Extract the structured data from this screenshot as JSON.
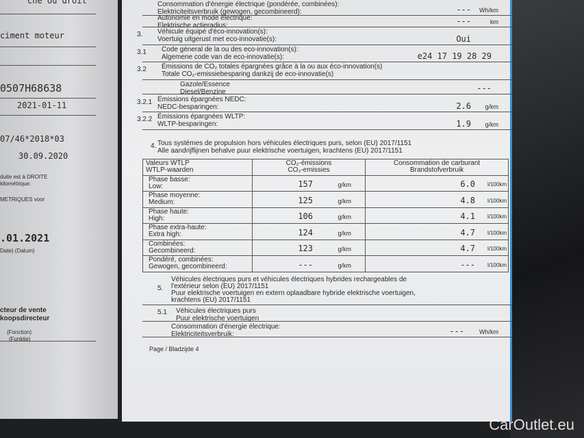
{
  "left_page": {
    "lines": [
      "che ou droit",
      "ciment moteur",
      "0507H68638",
      "2021-01-11",
      "07/46*2018*03",
      "30.09.2020",
      "duite est à DROITE",
      "kilométrique.",
      "METRIQUES voor",
      ".01.2021",
      "Date) (Datum)",
      "cteur de vente",
      "koopsdirecteur",
      "(Fonction)",
      "(Funktie)"
    ]
  },
  "rows": [
    {
      "num": "",
      "fr": "Consommation d'énergie électrique (pondérée, combinées):",
      "nl": "Elektriciteitsverbruik (gewogen, gecombineerd):",
      "value": "---",
      "unit": "Wh/km"
    },
    {
      "num": "",
      "fr": "Autonomie en mode électrique:",
      "nl": "Elektrische actieradius:",
      "value": "---",
      "unit": "km"
    },
    {
      "num": "3.",
      "fr": "Véhicule équipé d'éco-innovation(s):",
      "nl": "Voertuig uitgerust met eco-innovatie(s):",
      "value": "Oui",
      "unit": ""
    },
    {
      "num": "3.1",
      "fr": "Code géneral de la ou des eco-innovation(s):",
      "nl": "Algemene code van de eco-innovatie(s):",
      "value": "e24 17 19 28 29",
      "unit": ""
    },
    {
      "num": "3.2",
      "fr": "Émissions de CO₂ totales épargnées grâce à la ou aux éco-innovation(s)",
      "nl": "Totale CO₂-emissiebesparing dankzij de eco-innovatie(s)",
      "value": "",
      "unit": ""
    },
    {
      "num": "",
      "fr": "Gazole/Essence",
      "nl": "Diesel/Benzine",
      "value": "---",
      "unit": ""
    },
    {
      "num": "3.2.1",
      "fr": "Émissions épargnées NEDC:",
      "nl": "NEDC-besparingen:",
      "value": "2.6",
      "unit": "g/km"
    },
    {
      "num": "3.2.2",
      "fr": "Émissions épargnées WLTP:",
      "nl": "WLTP-besparingen:",
      "value": "1.9",
      "unit": "g/km"
    }
  ],
  "section4": {
    "num": "4.",
    "fr": "Tous systèmes de propulsion hors véhicules électriques purs, selon (EU) 2017/1151",
    "nl": "Alle aandrijflijnen behalve puur elektrische voertuigen, krachtens (EU) 2017/1151"
  },
  "table": {
    "headers": [
      [
        "Valeurs WTLP",
        "WTLP-waarden"
      ],
      [
        "CO₂-émissions",
        "CO₂-emissies"
      ],
      [
        "Consommation de carburant",
        "Brandstofverbruik"
      ]
    ],
    "rows": [
      {
        "fr": "Phase basse:",
        "nl": "Low:",
        "co2": "157",
        "co2_unit": "g/km",
        "fuel": "6.0",
        "fuel_unit": "l/100km"
      },
      {
        "fr": "Phase moyenne:",
        "nl": "Medium:",
        "co2": "125",
        "co2_unit": "g/km",
        "fuel": "4.8",
        "fuel_unit": "l/100km"
      },
      {
        "fr": "Phase haute:",
        "nl": "High:",
        "co2": "106",
        "co2_unit": "g/km",
        "fuel": "4.1",
        "fuel_unit": "l/100km"
      },
      {
        "fr": "Phase extra-haute:",
        "nl": "Extra high:",
        "co2": "124",
        "co2_unit": "g/km",
        "fuel": "4.7",
        "fuel_unit": "l/100km"
      },
      {
        "fr": "Combinées:",
        "nl": "Gecombineerd:",
        "co2": "123",
        "co2_unit": "g/km",
        "fuel": "4.7",
        "fuel_unit": "l/100km"
      },
      {
        "fr": "Pondéré, combinées:",
        "nl": "Gewogen, gecombineerd:",
        "co2": "---",
        "co2_unit": "g/km",
        "fuel": "---",
        "fuel_unit": "l/100km"
      }
    ]
  },
  "section5": {
    "num": "5.",
    "l1": "Véhicules électriques purs et véhicules électriques hybrides rechargeables de",
    "l2": "l'extérieur selon (EU) 2017/1151",
    "l3": "Puur elektrische voertuigen en extern oplaadbare hybride elektrische voertuigen,",
    "l4": "krachtens (EU) 2017/1151"
  },
  "section51": {
    "num": "5.1",
    "fr": "Véhicules électriques purs",
    "nl": "Puur elektrische voertuigen"
  },
  "energy": {
    "fr": "Consommation d'énergie électrique:",
    "nl": "Elektriciteitsverbruik:",
    "value": "---",
    "unit": "Wh/km"
  },
  "footer": "Page / Bladzijde 4",
  "watermark": "CarOutlet.eu"
}
